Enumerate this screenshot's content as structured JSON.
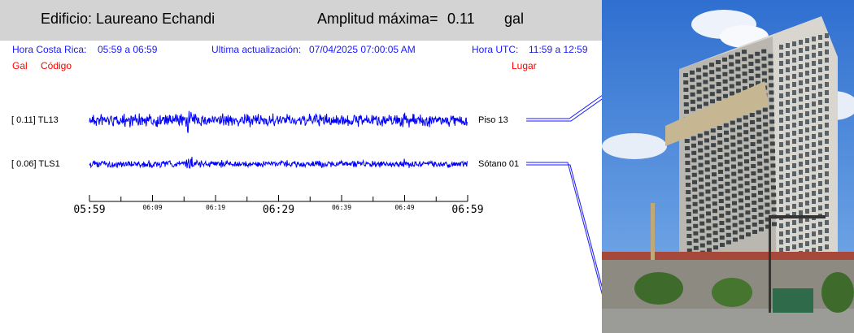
{
  "header": {
    "building": "Edificio: Laureano Echandi",
    "amp_label": "Amplitud máxima=",
    "amp_value": "0.11",
    "amp_unit": "gal"
  },
  "info": {
    "hora_cr_label": "Hora Costa Rica:",
    "hora_cr_value": "05:59 a 06:59",
    "update_label": "Ultima actualización:",
    "update_value": "07/04/2025 07:00:05 AM",
    "utc_label": "Hora UTC:",
    "utc_value": "11:59 a 12:59"
  },
  "columns": {
    "gal": "Gal",
    "codigo": "Código",
    "lugar": "Lugar"
  },
  "traces": [
    {
      "label": "[  0.11] TL13",
      "place": "Piso 13",
      "amplitude": 0.11
    },
    {
      "label": "[  0.06] TLS1",
      "place": "Sótano 01",
      "amplitude": 0.06
    }
  ],
  "time_axis": {
    "major": [
      "05:59",
      "06:29",
      "06:59"
    ],
    "minor": [
      "06:09",
      "06:19",
      "06:39",
      "06:49"
    ]
  },
  "colors": {
    "trace": "#0000ff",
    "info_text": "#1a1aff",
    "column_text": "#ff0000",
    "header_bg": "#d3d3d3"
  }
}
